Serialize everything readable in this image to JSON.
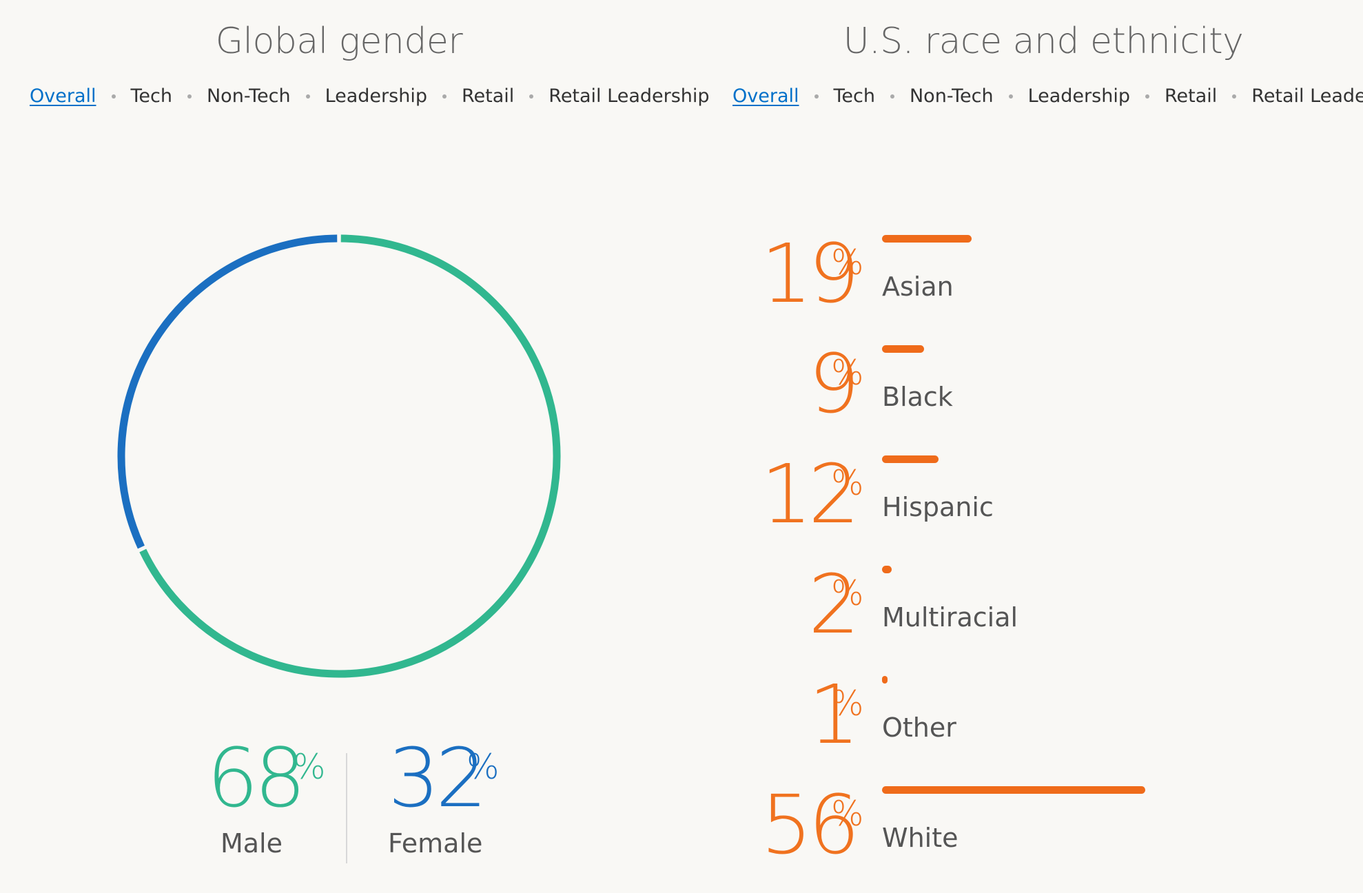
{
  "gender_section": {
    "title": "Global gender",
    "filters": [
      "Overall",
      "Tech",
      "Non-Tech",
      "Leadership",
      "Retail",
      "Retail Leadership"
    ],
    "active_filter": "Overall",
    "male": {
      "value": "68",
      "unit": "%",
      "label": "Male"
    },
    "female": {
      "value": "32",
      "unit": "%",
      "label": "Female"
    }
  },
  "race_section": {
    "title": "U.S. race and ethnicity",
    "filters": [
      "Overall",
      "Tech",
      "Non-Tech",
      "Leadership",
      "Retail",
      "Retail Leadership"
    ],
    "active_filter": "Overall"
  },
  "colors": {
    "male": "#31b78f",
    "female": "#1b6fc1",
    "race_accent": "#ef6b1a",
    "link": "#0070c9",
    "background": "#f9f8f5"
  },
  "chart_data": [
    {
      "type": "pie",
      "title": "Global gender",
      "style": "donut-ring",
      "categories": [
        "Male",
        "Female"
      ],
      "values": [
        68,
        32
      ],
      "colors": [
        "#31b78f",
        "#1b6fc1"
      ]
    },
    {
      "type": "bar",
      "orientation": "horizontal",
      "title": "U.S. race and ethnicity",
      "categories": [
        "Asian",
        "Black",
        "Hispanic",
        "Multiracial",
        "Other",
        "White"
      ],
      "values": [
        19,
        9,
        12,
        2,
        1,
        56
      ],
      "unit": "%",
      "xlim": [
        0,
        56
      ],
      "grid": false,
      "color": "#ef6b1a"
    }
  ]
}
